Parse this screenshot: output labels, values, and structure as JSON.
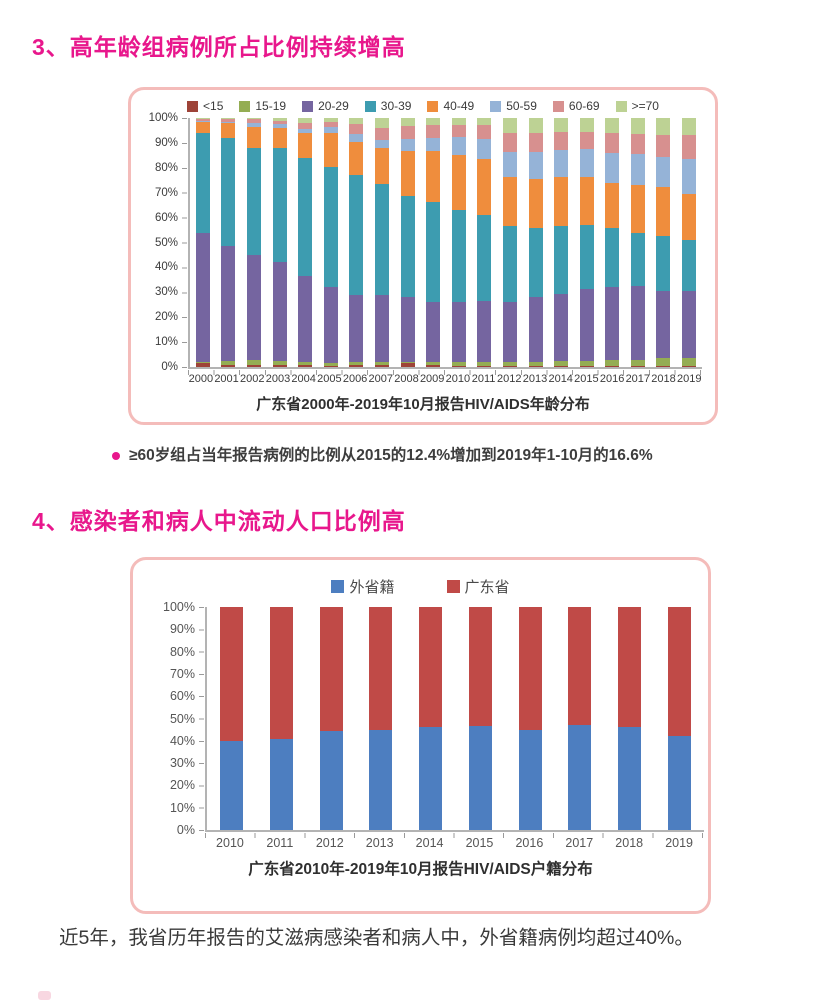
{
  "sections": [
    {
      "number": "3",
      "heading": "3、高年龄组病例所占比例持续增高",
      "bullet": "≥60岁组占当年报告病例的比例从2015的12.4%增加到2019年1-10月的16.6%"
    },
    {
      "number": "4",
      "heading": "4、感染者和病人中流动人口比例高",
      "note": "近5年，我省历年报告的艾滋病感染者和病人中，外省籍病例均超过40%。"
    }
  ],
  "colors": {
    "accent_pink": "#e8178c",
    "panel_border": "#f4bcba",
    "axis_gray": "#b3b3b3",
    "text_dark": "#3d3d3d"
  },
  "chart_data": [
    {
      "type": "bar",
      "subtype": "stacked-100-percent",
      "title": "广东省2000年-2019年10月报告HIV/AIDS年龄分布",
      "categories": [
        "2000",
        "2001",
        "2002",
        "2003",
        "2004",
        "2005",
        "2006",
        "2007",
        "2008",
        "2009",
        "2010",
        "2011",
        "2012",
        "2013",
        "2014",
        "2015",
        "2016",
        "2017",
        "2018",
        "2019"
      ],
      "y_ticks": [
        "100%",
        "90%",
        "80%",
        "70%",
        "60%",
        "50%",
        "40%",
        "30%",
        "20%",
        "10%",
        "0%"
      ],
      "ylim": [
        0,
        100
      ],
      "grid": false,
      "legend_position": "top",
      "series": [
        {
          "name": "<15",
          "color": "#9e4338",
          "values": [
            1.5,
            1,
            1,
            1,
            1,
            0.5,
            1,
            1,
            1.5,
            1,
            0.5,
            0.5,
            0.5,
            0.5,
            0.5,
            0.5,
            0.5,
            0.5,
            0.5,
            0.5
          ]
        },
        {
          "name": "15-19",
          "color": "#94ad53",
          "values": [
            0.5,
            1.5,
            2,
            1.5,
            1,
            1,
            1,
            1,
            0.5,
            1,
            1.5,
            1.5,
            1.5,
            1.5,
            2,
            2,
            2.5,
            2.5,
            3,
            3
          ]
        },
        {
          "name": "20-29",
          "color": "#7565a0",
          "values": [
            52,
            46,
            42,
            39.5,
            34.5,
            30.5,
            27,
            27,
            26,
            24,
            24,
            24.5,
            24,
            26,
            27,
            29,
            29,
            29.5,
            27,
            27
          ]
        },
        {
          "name": "30-39",
          "color": "#3d9cb0",
          "values": [
            40,
            43.5,
            43,
            46,
            47.5,
            48.3,
            48,
            44.6,
            40.7,
            40.3,
            36.9,
            34.4,
            30.5,
            28,
            27,
            25.5,
            24,
            21.5,
            22,
            20.5
          ]
        },
        {
          "name": "40-49",
          "color": "#ef8d3d",
          "values": [
            4.5,
            6,
            8.5,
            8,
            10,
            13.5,
            13.5,
            14.4,
            17.9,
            20.3,
            22.1,
            22.8,
            20,
            19.5,
            20,
            19.5,
            18,
            19,
            20,
            18.5
          ]
        },
        {
          "name": "50-59",
          "color": "#95b3d7",
          "values": [
            0.5,
            0.5,
            1.5,
            1.5,
            1.5,
            2.5,
            3.1,
            3.3,
            5.1,
            5.4,
            7.4,
            8,
            10,
            11,
            10.5,
            11.1,
            12,
            12.5,
            12,
            14
          ]
        },
        {
          "name": "60-69",
          "color": "#d7908f",
          "values": [
            0.5,
            1,
            1.5,
            1.5,
            2.5,
            2.2,
            4,
            4.7,
            5.1,
            5.1,
            4.9,
            5.4,
            7.5,
            7.5,
            7.3,
            6.9,
            7.8,
            8,
            8.7,
            9.5
          ]
        },
        {
          "name": ">=70",
          "color": "#bdd294",
          "values": [
            0.5,
            0.5,
            0.5,
            1,
            2,
            1.5,
            2.4,
            4,
            3.2,
            2.9,
            2.7,
            2.9,
            6,
            6,
            5.7,
            5.5,
            6.2,
            6.5,
            6.8,
            7
          ]
        }
      ]
    },
    {
      "type": "bar",
      "subtype": "stacked-100-percent",
      "title": "广东省2010年-2019年10月报告HIV/AIDS户籍分布",
      "categories": [
        "2010",
        "2011",
        "2012",
        "2013",
        "2014",
        "2015",
        "2016",
        "2017",
        "2018",
        "2019"
      ],
      "y_ticks": [
        "100%",
        "90%",
        "80%",
        "70%",
        "60%",
        "50%",
        "40%",
        "30%",
        "20%",
        "10%",
        "0%"
      ],
      "ylim": [
        0,
        100
      ],
      "grid": false,
      "legend_position": "top",
      "series": [
        {
          "name": "外省籍",
          "color": "#4d7ec0",
          "values": [
            40,
            41,
            44.5,
            45,
            46,
            46.5,
            45,
            47,
            46,
            42
          ]
        },
        {
          "name": "广东省",
          "color": "#c04a47",
          "values": [
            60,
            59,
            55.5,
            55,
            54,
            53.5,
            55,
            53,
            54,
            58
          ]
        }
      ]
    }
  ]
}
